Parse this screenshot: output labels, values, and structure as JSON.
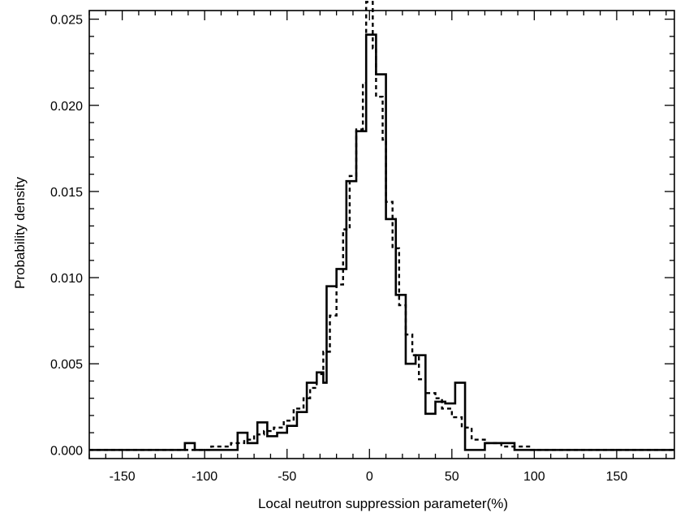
{
  "chart_data": {
    "type": "histogram",
    "title": "",
    "xlabel": "Local neutron suppression parameter(%)",
    "ylabel": "Probability density",
    "xlim": [
      -170,
      185
    ],
    "ylim": [
      -0.0005,
      0.0255
    ],
    "x_ticks": [
      -150,
      -100,
      -50,
      0,
      50,
      100,
      150
    ],
    "x_tick_labels": [
      "-150",
      "-100",
      "-50",
      "0",
      "50",
      "100",
      "150"
    ],
    "y_ticks": [
      0.0,
      0.005,
      0.01,
      0.015,
      0.02,
      0.025
    ],
    "y_tick_labels": [
      "0.000",
      "0.005",
      "0.010",
      "0.015",
      "0.020",
      "0.025"
    ],
    "grid": false,
    "legend": "none",
    "series": [
      {
        "style": "solid",
        "points": [
          [
            -170,
            0.0
          ],
          [
            -112,
            0.0
          ],
          [
            -112,
            0.0004
          ],
          [
            -106,
            0.0004
          ],
          [
            -106,
            0.0
          ],
          [
            -80,
            0.0
          ],
          [
            -80,
            0.001
          ],
          [
            -74,
            0.001
          ],
          [
            -74,
            0.0004
          ],
          [
            -68,
            0.0004
          ],
          [
            -68,
            0.0016
          ],
          [
            -62,
            0.0016
          ],
          [
            -62,
            0.0008
          ],
          [
            -56,
            0.0008
          ],
          [
            -56,
            0.001
          ],
          [
            -50,
            0.001
          ],
          [
            -50,
            0.0014
          ],
          [
            -44,
            0.0014
          ],
          [
            -44,
            0.0022
          ],
          [
            -38,
            0.0022
          ],
          [
            -38,
            0.0039
          ],
          [
            -32,
            0.0039
          ],
          [
            -32,
            0.0045
          ],
          [
            -28,
            0.0045
          ],
          [
            -28,
            0.0039
          ],
          [
            -26,
            0.0039
          ],
          [
            -26,
            0.0095
          ],
          [
            -20,
            0.0095
          ],
          [
            -20,
            0.0105
          ],
          [
            -14,
            0.0105
          ],
          [
            -14,
            0.0156
          ],
          [
            -8,
            0.0156
          ],
          [
            -8,
            0.0185
          ],
          [
            -2,
            0.0185
          ],
          [
            -2,
            0.0241
          ],
          [
            4,
            0.0241
          ],
          [
            4,
            0.0218
          ],
          [
            10,
            0.0218
          ],
          [
            10,
            0.0134
          ],
          [
            16,
            0.0134
          ],
          [
            16,
            0.009
          ],
          [
            22,
            0.009
          ],
          [
            22,
            0.005
          ],
          [
            28,
            0.005
          ],
          [
            28,
            0.0055
          ],
          [
            34,
            0.0055
          ],
          [
            34,
            0.0021
          ],
          [
            40,
            0.0021
          ],
          [
            40,
            0.0028
          ],
          [
            46,
            0.0028
          ],
          [
            46,
            0.0027
          ],
          [
            52,
            0.0027
          ],
          [
            52,
            0.0039
          ],
          [
            58,
            0.0039
          ],
          [
            58,
            0.0
          ],
          [
            70,
            0.0
          ],
          [
            70,
            0.0004
          ],
          [
            88,
            0.0004
          ],
          [
            88,
            0.0
          ],
          [
            185,
            0.0
          ]
        ]
      },
      {
        "style": "dashed",
        "points": [
          [
            -170,
            0.0
          ],
          [
            -96,
            0.0
          ],
          [
            -96,
            0.0002
          ],
          [
            -84,
            0.0002
          ],
          [
            -84,
            0.0004
          ],
          [
            -76,
            0.0004
          ],
          [
            -76,
            0.0006
          ],
          [
            -70,
            0.0006
          ],
          [
            -70,
            0.0009
          ],
          [
            -64,
            0.0009
          ],
          [
            -64,
            0.0011
          ],
          [
            -58,
            0.0011
          ],
          [
            -58,
            0.0013
          ],
          [
            -52,
            0.0013
          ],
          [
            -52,
            0.0017
          ],
          [
            -46,
            0.0017
          ],
          [
            -46,
            0.0024
          ],
          [
            -40,
            0.0024
          ],
          [
            -40,
            0.003
          ],
          [
            -36,
            0.003
          ],
          [
            -36,
            0.0036
          ],
          [
            -32,
            0.0036
          ],
          [
            -32,
            0.0044
          ],
          [
            -28,
            0.0044
          ],
          [
            -28,
            0.0057
          ],
          [
            -24,
            0.0057
          ],
          [
            -24,
            0.0078
          ],
          [
            -20,
            0.0078
          ],
          [
            -20,
            0.0096
          ],
          [
            -16,
            0.0096
          ],
          [
            -16,
            0.0128
          ],
          [
            -12,
            0.0128
          ],
          [
            -12,
            0.0159
          ],
          [
            -8,
            0.0159
          ],
          [
            -8,
            0.0186
          ],
          [
            -4,
            0.0186
          ],
          [
            -4,
            0.0213
          ],
          [
            -2,
            0.0213
          ],
          [
            -2,
            0.026
          ],
          [
            2,
            0.026
          ],
          [
            2,
            0.0233
          ],
          [
            4,
            0.0233
          ],
          [
            4,
            0.0205
          ],
          [
            8,
            0.0205
          ],
          [
            8,
            0.018
          ],
          [
            10,
            0.018
          ],
          [
            10,
            0.0144
          ],
          [
            14,
            0.0144
          ],
          [
            14,
            0.0117
          ],
          [
            18,
            0.0117
          ],
          [
            18,
            0.0084
          ],
          [
            22,
            0.0084
          ],
          [
            22,
            0.0067
          ],
          [
            26,
            0.0067
          ],
          [
            26,
            0.0055
          ],
          [
            30,
            0.0055
          ],
          [
            30,
            0.0041
          ],
          [
            34,
            0.0041
          ],
          [
            34,
            0.0033
          ],
          [
            40,
            0.0033
          ],
          [
            40,
            0.003
          ],
          [
            44,
            0.003
          ],
          [
            44,
            0.0024
          ],
          [
            50,
            0.0024
          ],
          [
            50,
            0.0019
          ],
          [
            56,
            0.0019
          ],
          [
            56,
            0.0013
          ],
          [
            62,
            0.0013
          ],
          [
            62,
            0.0006
          ],
          [
            70,
            0.0006
          ],
          [
            70,
            0.0004
          ],
          [
            80,
            0.0004
          ],
          [
            80,
            0.0002
          ],
          [
            98,
            0.0002
          ],
          [
            98,
            0.0
          ],
          [
            185,
            0.0
          ]
        ]
      }
    ]
  }
}
